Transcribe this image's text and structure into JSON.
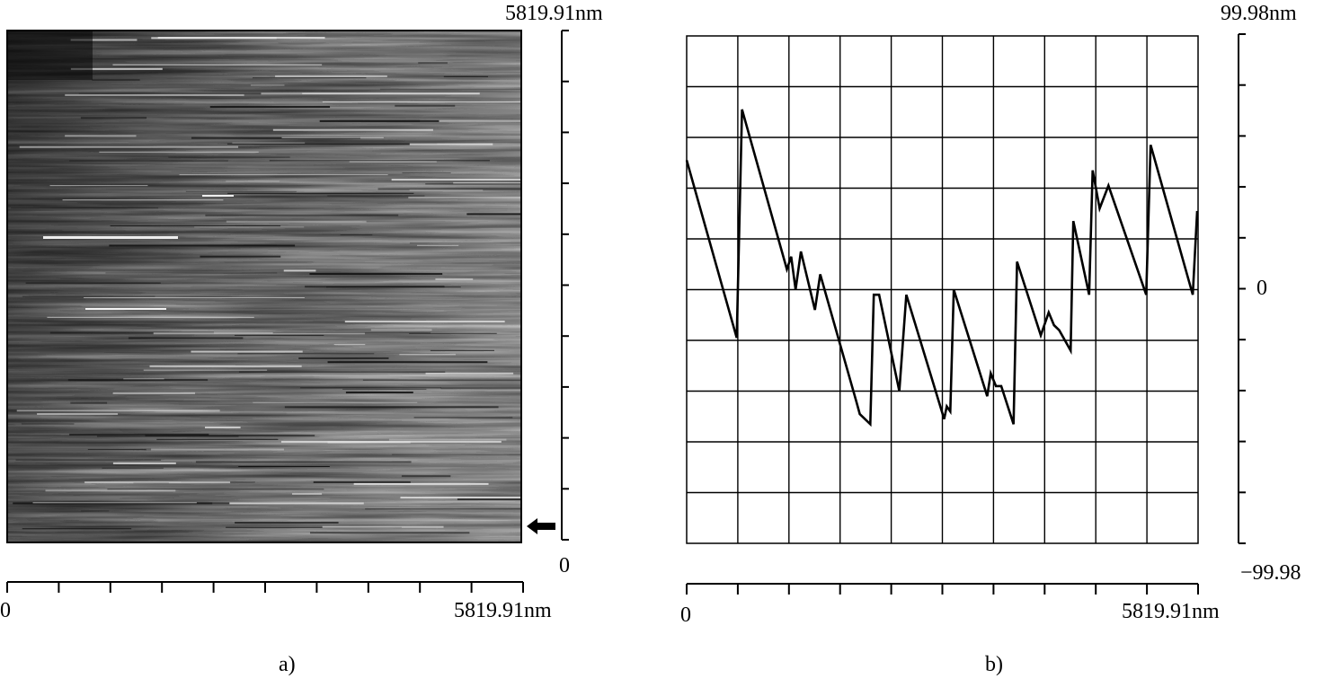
{
  "panel_a": {
    "caption": "a)",
    "y_top_label": "5819.91nm",
    "y_bottom_label": "0",
    "x_start_label": "0",
    "x_end_label": "5819.91nm",
    "marker_icon": "left-arrow-icon",
    "image_description_colors": {
      "dark": "#111111",
      "light": "#f0f0f0"
    }
  },
  "panel_b": {
    "caption": "b)",
    "y_top_label": "99.98nm",
    "y_zero_label": "0",
    "y_bottom_label": "−99.98",
    "x_start_label": "0",
    "x_end_label": "5819.91nm"
  },
  "chart_data": [
    {
      "type": "heatmap",
      "panel": "a",
      "xlim": [
        0,
        5819.91
      ],
      "ylim": [
        0,
        5819.91
      ],
      "x_unit": "nm",
      "y_unit": "nm",
      "colormap": "grayscale",
      "grid": false
    },
    {
      "type": "line",
      "panel": "b",
      "xlim": [
        0,
        5819.91
      ],
      "ylim": [
        -99.98,
        99.98
      ],
      "x_unit": "nm",
      "y_unit": "nm",
      "grid": true,
      "series": [
        {
          "x": [
            0,
            570,
            630,
            1140,
            1190,
            1240,
            1300,
            1460,
            1520,
            1930,
            1970,
            2090,
            2130,
            2190,
            2420,
            2500,
            2930,
            2960,
            3000,
            3040,
            3420,
            3460,
            3520,
            3580,
            3720,
            3760,
            4030,
            4120,
            4180,
            4240,
            4370,
            4400,
            4580,
            4620,
            4700,
            4800,
            5230,
            5280,
            5760,
            5810
          ],
          "values": [
            51,
            -19,
            71,
            8,
            13,
            0,
            15,
            -8,
            6,
            -44,
            -49,
            -53,
            -2,
            -2,
            -40,
            -2,
            -51,
            -46,
            -48,
            0,
            -42,
            -33,
            -38,
            -38,
            -53,
            11,
            -18,
            -9,
            -14,
            -16,
            -24,
            27,
            -2,
            47,
            32,
            41,
            -2,
            57,
            -2,
            31
          ]
        }
      ]
    }
  ]
}
